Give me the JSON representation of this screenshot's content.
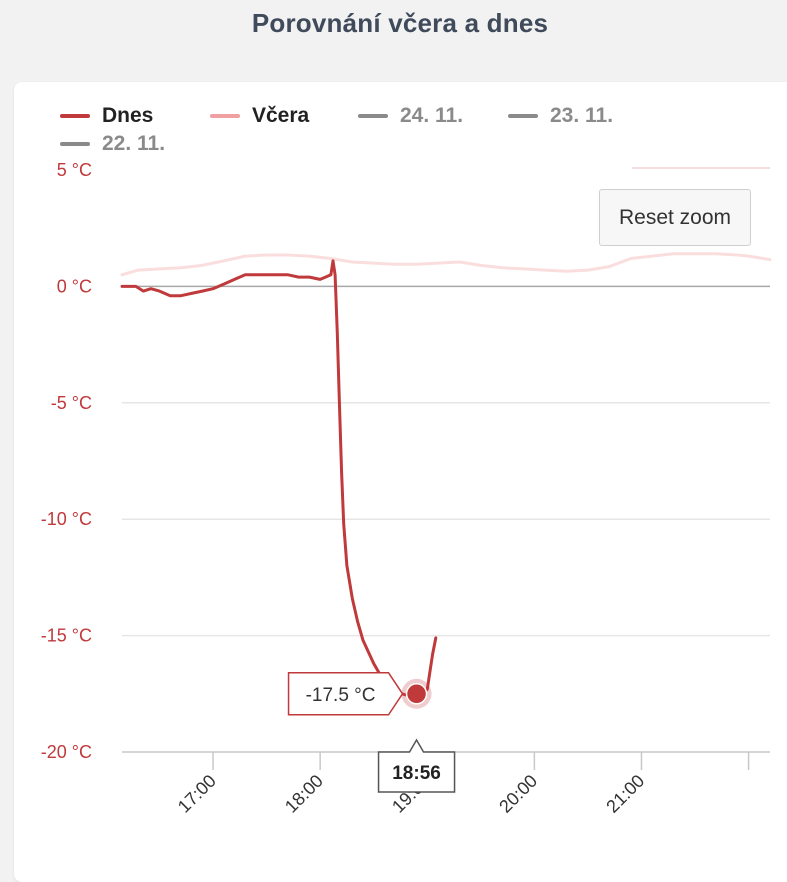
{
  "title": "Porovnání včera a dnes",
  "reset_zoom_label": "Reset zoom",
  "legend": [
    {
      "label": "Dnes",
      "color": "#c0393b"
    },
    {
      "label": "Včera",
      "color": "#f0a0a0"
    },
    {
      "label": "24. 11.",
      "color": "#8a8a8a"
    },
    {
      "label": "23. 11.",
      "color": "#8a8a8a"
    },
    {
      "label": "22. 11.",
      "color": "#8a8a8a"
    }
  ],
  "tooltip": {
    "value_label": "-17.5 °C",
    "time_label": "18:56"
  },
  "chart_data": {
    "type": "line",
    "title": "Porovnání včera a dnes",
    "ylim": [
      -20,
      5
    ],
    "y_ticks": [
      5,
      0,
      -5,
      -10,
      -15,
      -20
    ],
    "y_tick_labels": [
      "5 °C",
      "0 °C",
      "-5 °C",
      "-10 °C",
      "-15 °C",
      "-20 °C"
    ],
    "xlim": [
      16.15,
      22.2
    ],
    "x_ticks": [
      17,
      18,
      19,
      20,
      21
    ],
    "x_tick_labels": [
      "17:00",
      "18:00",
      "19:00",
      "20:00",
      "21:00"
    ],
    "grid": true,
    "legend_position": "top-left",
    "series": [
      {
        "name": "Dnes",
        "color": "#c0393b",
        "x": [
          16.15,
          16.28,
          16.35,
          16.42,
          16.5,
          16.6,
          16.7,
          16.8,
          16.9,
          17.0,
          17.1,
          17.2,
          17.3,
          17.4,
          17.5,
          17.6,
          17.7,
          17.8,
          17.9,
          18.0,
          18.05,
          18.1,
          18.12,
          18.14,
          18.16,
          18.18,
          18.2,
          18.22,
          18.25,
          18.3,
          18.35,
          18.4,
          18.5,
          18.6,
          18.7,
          18.8,
          18.9,
          18.93,
          18.96,
          19.0,
          19.02,
          19.05,
          19.08
        ],
        "values": [
          0.0,
          0.0,
          -0.2,
          -0.1,
          -0.2,
          -0.4,
          -0.4,
          -0.3,
          -0.2,
          -0.1,
          0.1,
          0.3,
          0.5,
          0.5,
          0.5,
          0.5,
          0.5,
          0.4,
          0.4,
          0.3,
          0.4,
          0.5,
          1.1,
          0.5,
          -2.0,
          -5.0,
          -8.0,
          -10.2,
          -12.0,
          -13.4,
          -14.4,
          -15.2,
          -16.2,
          -17.0,
          -17.4,
          -17.55,
          -17.5,
          -17.4,
          -17.5,
          -17.3,
          -16.7,
          -15.8,
          -15.1
        ]
      },
      {
        "name": "Včera",
        "color": "#f0a0a0",
        "x": [
          16.15,
          16.3,
          16.5,
          16.7,
          16.9,
          17.1,
          17.3,
          17.5,
          17.7,
          17.9,
          18.1,
          18.3,
          18.5,
          18.7,
          18.9,
          19.1,
          19.3,
          19.5,
          19.7,
          19.9,
          20.1,
          20.3,
          20.5,
          20.7,
          20.9,
          21.1,
          21.3,
          21.5,
          21.7,
          21.9,
          22.0,
          22.2
        ],
        "values": [
          0.5,
          0.7,
          0.75,
          0.8,
          0.9,
          1.1,
          1.3,
          1.35,
          1.35,
          1.3,
          1.2,
          1.05,
          1.0,
          0.95,
          0.95,
          1.0,
          1.05,
          0.9,
          0.8,
          0.75,
          0.7,
          0.65,
          0.7,
          0.85,
          1.2,
          1.3,
          1.4,
          1.4,
          1.4,
          1.35,
          1.3,
          1.15
        ]
      }
    ]
  }
}
